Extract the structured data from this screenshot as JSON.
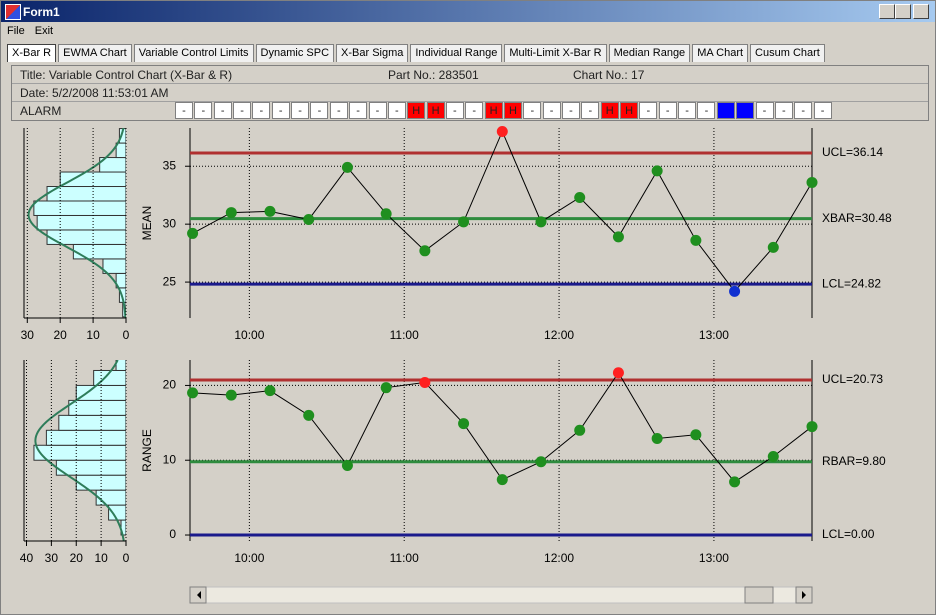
{
  "window": {
    "title": "Form1"
  },
  "menu": [
    "File",
    "Exit"
  ],
  "tabs": [
    "X-Bar R",
    "EWMA Chart",
    "Variable Control Limits",
    "Dynamic SPC",
    "X-Bar Sigma",
    "Individual Range",
    "Multi-Limit X-Bar R",
    "Median Range",
    "MA Chart",
    "Cusum Chart"
  ],
  "header": {
    "title": "Title: Variable Control Chart (X-Bar & R)",
    "part": "Part No.: 283501",
    "chart_no": "Chart No.: 17",
    "date": "Date: 5/2/2008 11:53:01 AM",
    "alarm_label": "ALARM"
  },
  "alarms": [
    {
      "text": "-",
      "color": "#ffffff"
    },
    {
      "text": "-",
      "color": "#ffffff"
    },
    {
      "text": "-",
      "color": "#ffffff"
    },
    {
      "text": "-",
      "color": "#ffffff"
    },
    {
      "text": "-",
      "color": "#ffffff"
    },
    {
      "text": "-",
      "color": "#ffffff"
    },
    {
      "text": "-",
      "color": "#ffffff"
    },
    {
      "text": "-",
      "color": "#ffffff"
    },
    {
      "text": "-",
      "color": "#ffffff"
    },
    {
      "text": "-",
      "color": "#ffffff"
    },
    {
      "text": "-",
      "color": "#ffffff"
    },
    {
      "text": "-",
      "color": "#ffffff"
    },
    {
      "text": "H",
      "color": "#ff0000"
    },
    {
      "text": "H",
      "color": "#ff0000"
    },
    {
      "text": "-",
      "color": "#ffffff"
    },
    {
      "text": "-",
      "color": "#ffffff"
    },
    {
      "text": "H",
      "color": "#ff0000"
    },
    {
      "text": "H",
      "color": "#ff0000"
    },
    {
      "text": "-",
      "color": "#ffffff"
    },
    {
      "text": "-",
      "color": "#ffffff"
    },
    {
      "text": "-",
      "color": "#ffffff"
    },
    {
      "text": "-",
      "color": "#ffffff"
    },
    {
      "text": "H",
      "color": "#ff0000"
    },
    {
      "text": "H",
      "color": "#ff0000"
    },
    {
      "text": "-",
      "color": "#ffffff"
    },
    {
      "text": "-",
      "color": "#ffffff"
    },
    {
      "text": "-",
      "color": "#ffffff"
    },
    {
      "text": "-",
      "color": "#ffffff"
    },
    {
      "text": "L",
      "color": "#0000ff"
    },
    {
      "text": "L",
      "color": "#0000ff"
    },
    {
      "text": "-",
      "color": "#ffffff"
    },
    {
      "text": "-",
      "color": "#ffffff"
    },
    {
      "text": "-",
      "color": "#ffffff"
    },
    {
      "text": "-",
      "color": "#ffffff"
    }
  ],
  "chart_data": [
    {
      "type": "line",
      "ylabel": "MEAN",
      "x": [
        "9:38",
        "9:53",
        "10:08",
        "10:23",
        "10:38",
        "10:53",
        "11:08",
        "11:23",
        "11:38",
        "11:53",
        "12:08",
        "12:23",
        "12:38",
        "12:53",
        "13:08",
        "13:23",
        "13:38"
      ],
      "values": [
        29.2,
        31.0,
        31.1,
        30.4,
        34.9,
        30.9,
        27.7,
        30.2,
        38.0,
        30.2,
        32.3,
        28.9,
        34.6,
        28.6,
        24.2,
        28.0,
        33.6
      ],
      "point_colors": [
        "#1f8f1f",
        "#1f8f1f",
        "#1f8f1f",
        "#1f8f1f",
        "#1f8f1f",
        "#1f8f1f",
        "#1f8f1f",
        "#1f8f1f",
        "#ff2020",
        "#1f8f1f",
        "#1f8f1f",
        "#1f8f1f",
        "#1f8f1f",
        "#1f8f1f",
        "#1030d0",
        "#1f8f1f",
        "#1f8f1f"
      ],
      "line_color": "#000000",
      "xlim": [
        "9:37",
        "13:38"
      ],
      "xticks": [
        "10:00",
        "11:00",
        "12:00",
        "13:00"
      ],
      "ylim": [
        21.9,
        38.3
      ],
      "yticks": [
        25,
        30,
        35
      ],
      "grid": true,
      "limits": [
        {
          "value": 36.14,
          "label": "UCL=36.14",
          "color": "#b03030"
        },
        {
          "value": 30.48,
          "label": "XBAR=30.48",
          "color": "#2e8b3e"
        },
        {
          "value": 24.82,
          "label": "LCL=24.82",
          "color": "#1a1a8c"
        }
      ]
    },
    {
      "type": "line",
      "ylabel": "RANGE",
      "x": [
        "9:38",
        "9:53",
        "10:08",
        "10:23",
        "10:38",
        "10:53",
        "11:08",
        "11:23",
        "11:38",
        "11:53",
        "12:08",
        "12:23",
        "12:38",
        "12:53",
        "13:08",
        "13:23",
        "13:38"
      ],
      "values": [
        19.0,
        18.7,
        19.3,
        16.0,
        9.3,
        19.7,
        20.4,
        14.9,
        7.4,
        9.8,
        14.0,
        21.7,
        12.9,
        13.4,
        7.1,
        10.5,
        14.5
      ],
      "point_colors": [
        "#1f8f1f",
        "#1f8f1f",
        "#1f8f1f",
        "#1f8f1f",
        "#1f8f1f",
        "#1f8f1f",
        "#ff2020",
        "#1f8f1f",
        "#1f8f1f",
        "#1f8f1f",
        "#1f8f1f",
        "#ff2020",
        "#1f8f1f",
        "#1f8f1f",
        "#1f8f1f",
        "#1f8f1f",
        "#1f8f1f"
      ],
      "line_color": "#000000",
      "xlim": [
        "9:37",
        "13:38"
      ],
      "xticks": [
        "10:00",
        "11:00",
        "12:00",
        "13:00"
      ],
      "ylim": [
        -0.8,
        23.4
      ],
      "yticks": [
        0,
        10,
        20
      ],
      "grid": true,
      "limits": [
        {
          "value": 20.73,
          "label": "UCL=20.73",
          "color": "#b03030"
        },
        {
          "value": 9.8,
          "label": "RBAR=9.80",
          "color": "#2e8b3e"
        },
        {
          "value": 0.0,
          "label": "LCL=0.00",
          "color": "#1a1a8c"
        }
      ]
    },
    {
      "type": "histogram",
      "orientation": "horizontal",
      "bins": [
        22,
        23.25,
        24.5,
        25.75,
        27,
        28.25,
        29.5,
        30.75,
        32,
        33.25,
        34.5,
        35.75,
        37,
        38.25
      ],
      "counts": [
        1,
        2,
        3,
        7,
        16,
        24,
        27,
        28,
        24,
        20,
        8,
        3,
        2
      ],
      "ylim": [
        21.9,
        38.3
      ],
      "xlim": [
        31,
        0
      ],
      "xticks": [
        30,
        20,
        10,
        0
      ],
      "grid": true,
      "color": "#ccffff",
      "curve_color": "#2e7d5a"
    },
    {
      "type": "histogram",
      "orientation": "horizontal",
      "bins": [
        0,
        2,
        4,
        6,
        8,
        10,
        12,
        14,
        16,
        18,
        20,
        22,
        24
      ],
      "counts": [
        2,
        7,
        12,
        20,
        28,
        37,
        32,
        27,
        23,
        20,
        13,
        4
      ],
      "ylim": [
        -0.8,
        23.4
      ],
      "xlim": [
        41,
        0
      ],
      "xticks": [
        40,
        30,
        20,
        10,
        0
      ],
      "grid": true,
      "color": "#ccffff",
      "curve_color": "#2e7d5a"
    }
  ]
}
